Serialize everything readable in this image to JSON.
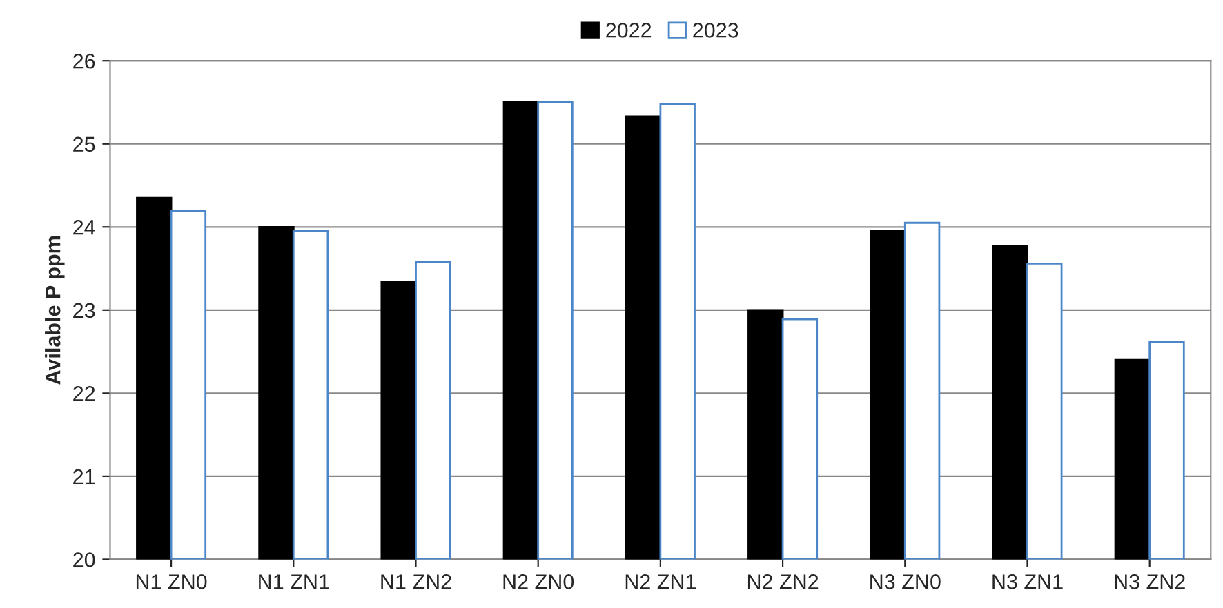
{
  "chart_data": {
    "type": "bar",
    "ylabel": "Avilable P ppm",
    "categories": [
      "N1 ZN0",
      "N1 ZN1",
      "N1 ZN2",
      "N2 ZN0",
      "N2 ZN1",
      "N2 ZN2",
      "N3 ZN0",
      "N3 ZN1",
      "N3 ZN2"
    ],
    "series": [
      {
        "name": "2022",
        "color": "#000000",
        "values": [
          24.35,
          24.0,
          23.34,
          25.5,
          25.33,
          23.0,
          23.95,
          23.77,
          22.4
        ]
      },
      {
        "name": "2023",
        "color": "#ffffff",
        "values": [
          24.19,
          23.95,
          23.58,
          25.5,
          25.48,
          22.89,
          24.05,
          23.56,
          22.62
        ]
      }
    ],
    "ylim": [
      20,
      26
    ],
    "yticks": [
      20,
      21,
      22,
      23,
      24,
      25,
      26
    ],
    "grid": "y",
    "legend": "top"
  }
}
